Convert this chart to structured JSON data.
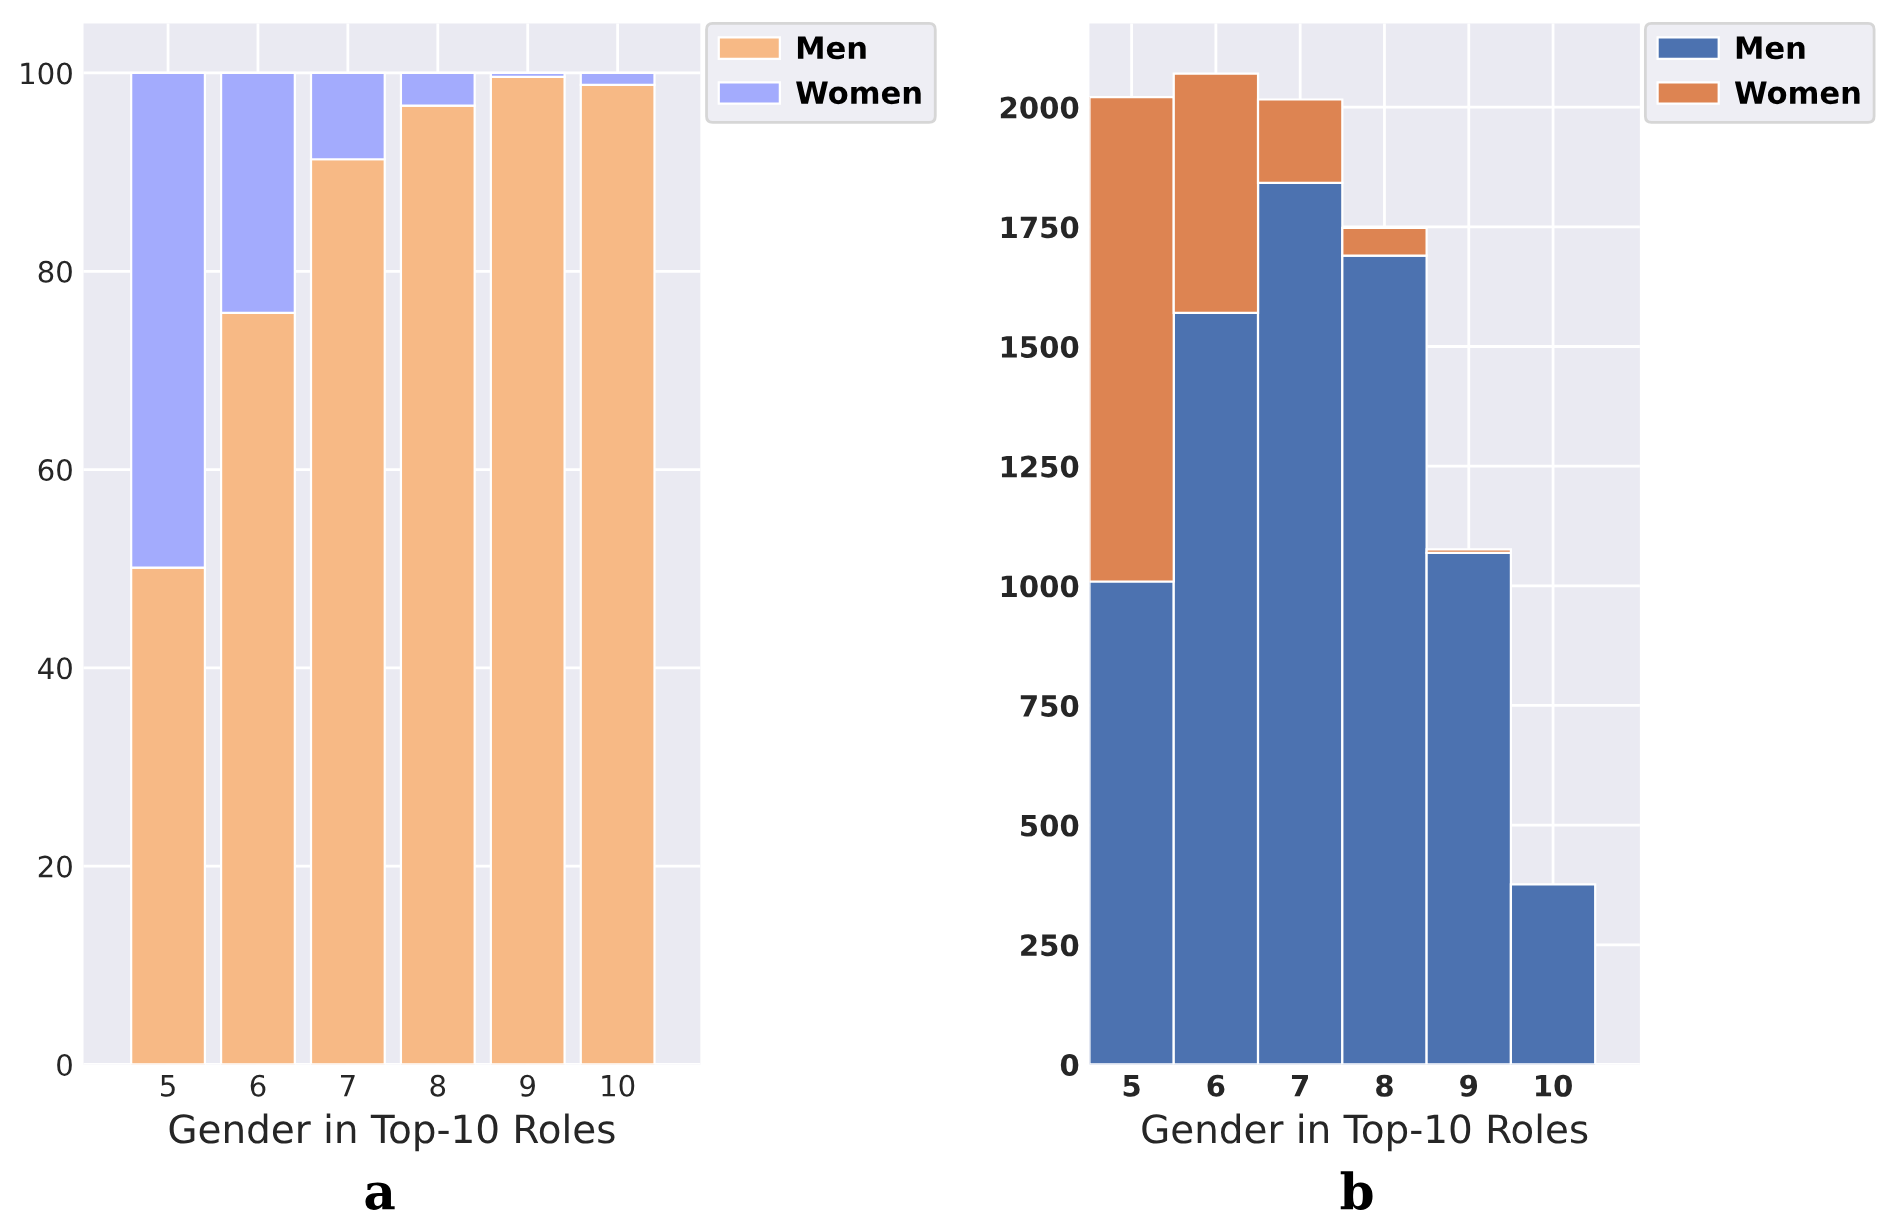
{
  "chart_data": [
    {
      "type": "bar",
      "stacked": true,
      "categories": [
        "5",
        "6",
        "7",
        "8",
        "9",
        "10"
      ],
      "xlabel": "Gender in Top-10 Roles",
      "ylim": [
        0,
        105
      ],
      "yticks": [
        0,
        20,
        40,
        60,
        80,
        100
      ],
      "grid": true,
      "legend": "top right",
      "annotations": [
        "a"
      ],
      "series": [
        {
          "name": "Men",
          "color": "#f7b985",
          "values": [
            50.1,
            75.8,
            91.3,
            96.7,
            99.6,
            98.8
          ]
        },
        {
          "name": "Women",
          "color": "#a3abfd",
          "values": [
            49.9,
            24.2,
            8.7,
            3.3,
            0.4,
            1.2
          ]
        }
      ]
    },
    {
      "type": "bar",
      "stacked": true,
      "categories": [
        "5",
        "6",
        "7",
        "8",
        "9",
        "10"
      ],
      "xlabel": "Gender in Top-10 Roles",
      "ylim": [
        0,
        2175
      ],
      "yticks": [
        0,
        250,
        500,
        750,
        1000,
        1250,
        1500,
        1750,
        2000
      ],
      "grid": true,
      "legend": "top right",
      "annotations": [
        "b"
      ],
      "series": [
        {
          "name": "Men",
          "color": "#4c72b0",
          "values": [
            1009,
            1570,
            1842,
            1690,
            1069,
            376
          ]
        },
        {
          "name": "Women",
          "color": "#dd8452",
          "values": [
            1012,
            500,
            174,
            58,
            7,
            null
          ]
        }
      ]
    }
  ]
}
